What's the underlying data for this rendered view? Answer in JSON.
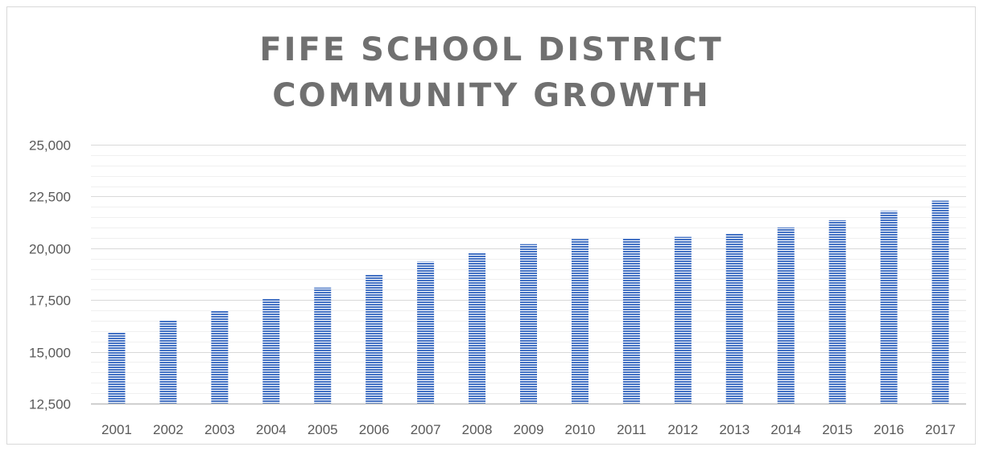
{
  "chart_data": {
    "type": "bar",
    "title_lines": [
      "FIFE SCHOOL DISTRICT",
      "COMMUNITY GROWTH"
    ],
    "xlabel": "",
    "ylabel": "",
    "categories": [
      "2001",
      "2002",
      "2003",
      "2004",
      "2005",
      "2006",
      "2007",
      "2008",
      "2009",
      "2010",
      "2011",
      "2012",
      "2013",
      "2014",
      "2015",
      "2016",
      "2017"
    ],
    "values": [
      15950,
      16500,
      17000,
      17550,
      18100,
      18750,
      19350,
      19800,
      20200,
      20450,
      20500,
      20550,
      20700,
      21000,
      21350,
      21800,
      22300
    ],
    "ylim": [
      12500,
      25000
    ],
    "y_ticks": [
      12500,
      15000,
      17500,
      20000,
      22500,
      25000
    ],
    "y_tick_labels": [
      "12,500",
      "15,000",
      "17,500",
      "20,000",
      "22,500",
      "25,000"
    ],
    "minor_grid_step": 500,
    "grid": true,
    "legend": "none",
    "bar_pattern": "horizontal-stripes",
    "colors": {
      "bar": "#4472c4",
      "bar_stripe": "#ffffff",
      "title": "#707070",
      "major_grid": "#d9d9d9",
      "minor_grid": "#f0f0f0",
      "axis": "#bfbfbf",
      "tick_text": "#595959"
    }
  }
}
